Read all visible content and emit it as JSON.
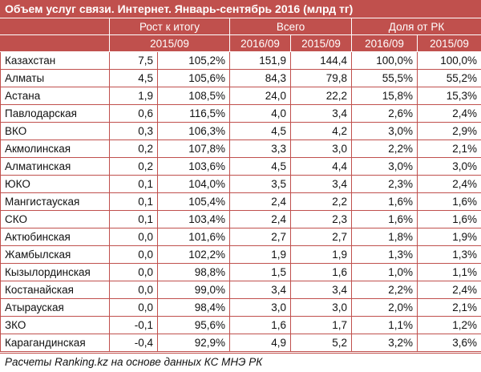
{
  "title": "Объем услуг связи. Интернет. Январь-сентябрь 2016 (млрд тг)",
  "header": {
    "growth_label": "Рост к итогу",
    "total_label": "Всего",
    "share_label": "Доля от РК",
    "period_growth": "2015/09",
    "total_2016": "2016/09",
    "total_2015": "2015/09",
    "share_2016": "2016/09",
    "share_2015": "2015/09"
  },
  "rows": [
    {
      "region": "Казахстан",
      "growth_abs": "7,5",
      "growth_pct": "105,2%",
      "total_2016": "151,9",
      "total_2015": "144,4",
      "share_2016": "100,0%",
      "share_2015": "100,0%"
    },
    {
      "region": "Алматы",
      "growth_abs": "4,5",
      "growth_pct": "105,6%",
      "total_2016": "84,3",
      "total_2015": "79,8",
      "share_2016": "55,5%",
      "share_2015": "55,2%"
    },
    {
      "region": "Астана",
      "growth_abs": "1,9",
      "growth_pct": "108,5%",
      "total_2016": "24,0",
      "total_2015": "22,2",
      "share_2016": "15,8%",
      "share_2015": "15,3%"
    },
    {
      "region": "Павлодарская",
      "growth_abs": "0,6",
      "growth_pct": "116,5%",
      "total_2016": "4,0",
      "total_2015": "3,4",
      "share_2016": "2,6%",
      "share_2015": "2,4%"
    },
    {
      "region": "ВКО",
      "growth_abs": "0,3",
      "growth_pct": "106,3%",
      "total_2016": "4,5",
      "total_2015": "4,2",
      "share_2016": "3,0%",
      "share_2015": "2,9%"
    },
    {
      "region": "Акмолинская",
      "growth_abs": "0,2",
      "growth_pct": "107,8%",
      "total_2016": "3,3",
      "total_2015": "3,0",
      "share_2016": "2,2%",
      "share_2015": "2,1%"
    },
    {
      "region": "Алматинская",
      "growth_abs": "0,2",
      "growth_pct": "103,6%",
      "total_2016": "4,5",
      "total_2015": "4,4",
      "share_2016": "3,0%",
      "share_2015": "3,0%"
    },
    {
      "region": "ЮКО",
      "growth_abs": "0,1",
      "growth_pct": "104,0%",
      "total_2016": "3,5",
      "total_2015": "3,4",
      "share_2016": "2,3%",
      "share_2015": "2,4%"
    },
    {
      "region": "Мангистауская",
      "growth_abs": "0,1",
      "growth_pct": "105,4%",
      "total_2016": "2,4",
      "total_2015": "2,2",
      "share_2016": "1,6%",
      "share_2015": "1,6%"
    },
    {
      "region": "СКО",
      "growth_abs": "0,1",
      "growth_pct": "103,4%",
      "total_2016": "2,4",
      "total_2015": "2,3",
      "share_2016": "1,6%",
      "share_2015": "1,6%"
    },
    {
      "region": "Актюбинская",
      "growth_abs": "0,0",
      "growth_pct": "101,6%",
      "total_2016": "2,7",
      "total_2015": "2,7",
      "share_2016": "1,8%",
      "share_2015": "1,9%"
    },
    {
      "region": "Жамбылская",
      "growth_abs": "0,0",
      "growth_pct": "102,2%",
      "total_2016": "1,9",
      "total_2015": "1,9",
      "share_2016": "1,3%",
      "share_2015": "1,3%"
    },
    {
      "region": "Кызылординская",
      "growth_abs": "0,0",
      "growth_pct": "98,8%",
      "total_2016": "1,5",
      "total_2015": "1,6",
      "share_2016": "1,0%",
      "share_2015": "1,1%"
    },
    {
      "region": "Костанайская",
      "growth_abs": "0,0",
      "growth_pct": "99,0%",
      "total_2016": "3,4",
      "total_2015": "3,4",
      "share_2016": "2,2%",
      "share_2015": "2,4%"
    },
    {
      "region": "Атырауская",
      "growth_abs": "0,0",
      "growth_pct": "98,4%",
      "total_2016": "3,0",
      "total_2015": "3,0",
      "share_2016": "2,0%",
      "share_2015": "2,1%"
    },
    {
      "region": "ЗКО",
      "growth_abs": "-0,1",
      "growth_pct": "95,6%",
      "total_2016": "1,6",
      "total_2015": "1,7",
      "share_2016": "1,1%",
      "share_2015": "1,2%"
    },
    {
      "region": "Карагандинская",
      "growth_abs": "-0,4",
      "growth_pct": "92,9%",
      "total_2016": "4,9",
      "total_2015": "5,2",
      "share_2016": "3,2%",
      "share_2015": "3,6%"
    }
  ],
  "footer": "Расчеты Ranking.kz на основе данных КС МНЭ РК",
  "colors": {
    "accent": "#c0504d",
    "header_text": "#ffffff"
  }
}
